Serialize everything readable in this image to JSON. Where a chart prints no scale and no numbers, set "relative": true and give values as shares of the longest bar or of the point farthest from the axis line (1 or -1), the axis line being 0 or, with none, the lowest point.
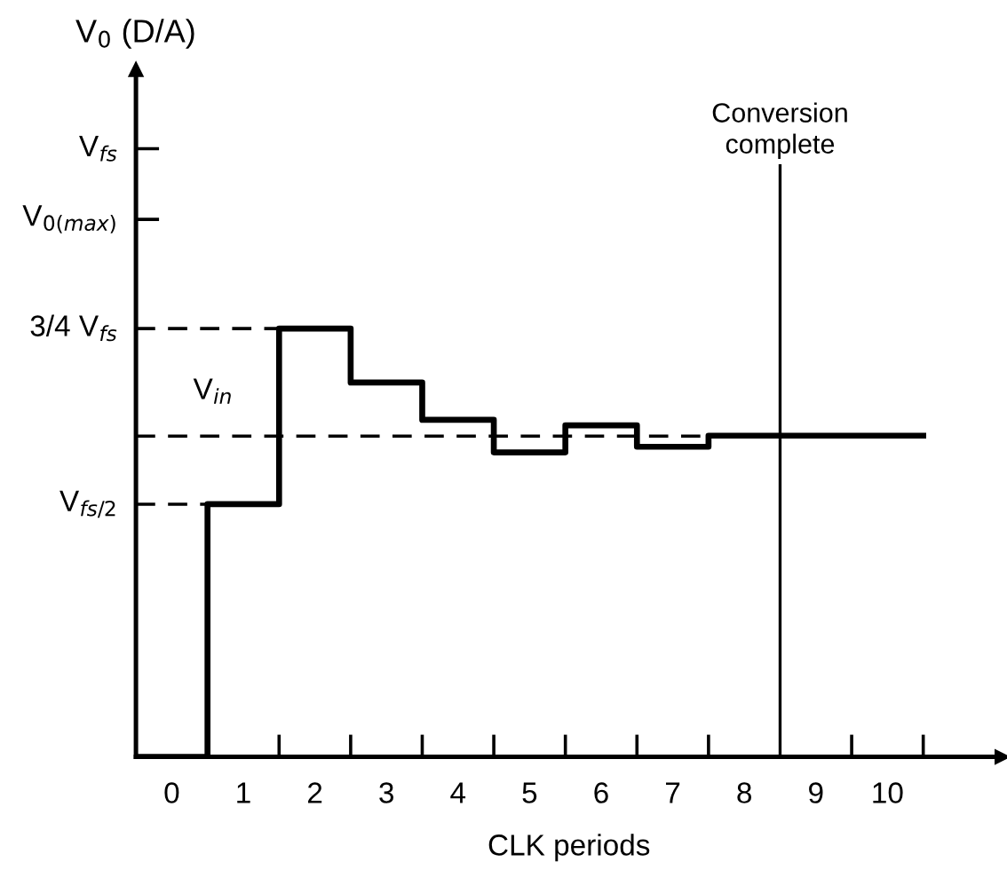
{
  "chart_data": {
    "type": "step",
    "xlabel": "CLK periods",
    "annotations": [
      "V$_{0}$ (D/A)",
      {
        "text": "V$_{in}$",
        "x": 0.3,
        "y": 0.749
      }
    ],
    "x": [
      -0.5,
      0.5,
      1.5,
      2.5,
      3.5,
      4.5,
      5.5,
      6.5,
      7.5,
      8.5,
      9.5,
      10.5
    ],
    "series": [
      {
        "color": "#000000",
        "values": [
          0,
          0.59,
          1.0,
          0.874,
          0.787,
          0.711,
          0.774,
          0.724,
          0.75,
          0.75,
          0.75,
          0.75
        ]
      }
    ],
    "relative": true,
    "xlim": [
      -0.5,
      11.6
    ],
    "xticks": [
      {
        "value": 0,
        "label": "0"
      },
      {
        "value": 1,
        "label": "1"
      },
      {
        "value": 2,
        "label": "2"
      },
      {
        "value": 3,
        "label": "3"
      },
      {
        "value": 4,
        "label": "4"
      },
      {
        "value": 5,
        "label": "5"
      },
      {
        "value": 6,
        "label": "6"
      },
      {
        "value": 7,
        "label": "7"
      },
      {
        "value": 8,
        "label": "8"
      },
      {
        "value": 9,
        "label": "9"
      },
      {
        "value": 10,
        "label": "10"
      },
      {
        "value": 1.5,
        "label": null
      },
      {
        "value": 2.5,
        "label": null
      },
      {
        "value": 3.5,
        "label": null
      },
      {
        "value": 4.5,
        "label": null
      },
      {
        "value": 5.5,
        "label": null
      },
      {
        "value": 6.5,
        "label": null
      },
      {
        "value": 7.5,
        "label": null
      },
      {
        "value": 9.5,
        "label": null
      },
      {
        "value": 10.5,
        "label": null
      }
    ],
    "ref_lines": [
      {
        "axis": "y",
        "value": 1.42,
        "label": "V$_{fs}$",
        "line_style": "solid",
        "color": "#000000"
      },
      {
        "axis": "y",
        "value": 1.255,
        "label": "V$_{0(max)}$",
        "line_style": "solid",
        "color": "#000000"
      },
      {
        "axis": "y",
        "value": 1.0,
        "label": "3/4 V$_{fs}$",
        "line_style": "dashed",
        "color": "#000000"
      },
      {
        "axis": "y",
        "value": 0.59,
        "label": "V$_{fs/2}$",
        "line_style": "dashed",
        "color": "#000000"
      },
      {
        "axis": "y",
        "value": 0.749,
        "line_style": "dashed",
        "color": "#000000"
      },
      {
        "axis": "x",
        "value": 8.5,
        "label": "Conversion\ncomplete",
        "line_style": "solid",
        "color": "#000000"
      }
    ],
    "grid": false,
    "marker": "none",
    "line_style": "solid"
  }
}
